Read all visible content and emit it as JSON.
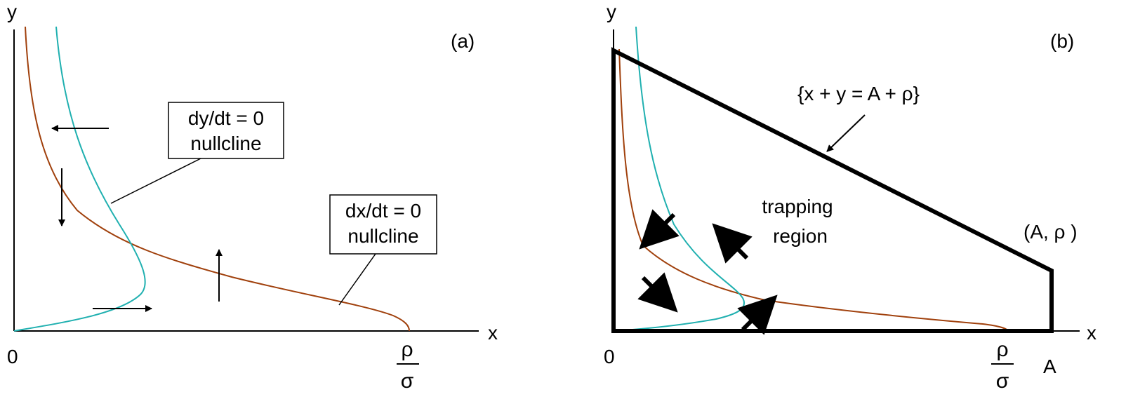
{
  "panel_a": {
    "label": "(a)",
    "y_axis": "y",
    "x_axis": "x",
    "origin": "0",
    "x_tick": {
      "numerator": "ρ",
      "denominator": "σ"
    },
    "box_dy": {
      "line1": "dy/dt = 0",
      "line2": "nullcline"
    },
    "box_dx": {
      "line1": "dx/dt = 0",
      "line2": "nullcline"
    }
  },
  "panel_b": {
    "label": "(b)",
    "y_axis": "y",
    "x_axis": "x",
    "origin": "0",
    "x_tick": {
      "numerator": "ρ",
      "denominator": "σ"
    },
    "x_tick_A": "A",
    "line_label": "{x + y = A + ρ}",
    "region_line1": "trapping",
    "region_line2": "region",
    "corner_label": "(A, ρ )"
  },
  "colors": {
    "dx_nullcline": "#a0400c",
    "dy_nullcline": "#20b0b0",
    "axes": "#000000"
  }
}
